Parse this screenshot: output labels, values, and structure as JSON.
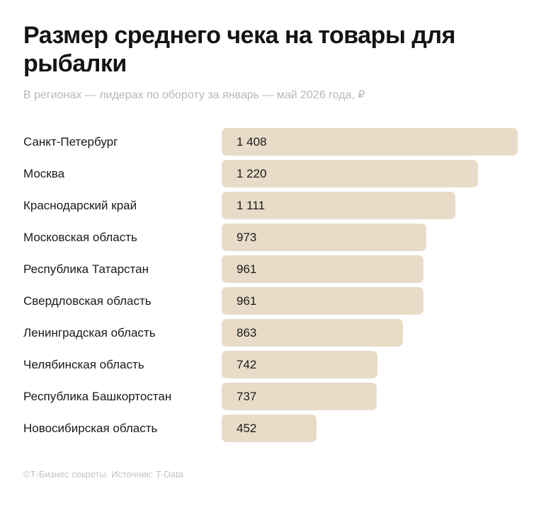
{
  "title": "Размер среднего чека на товары для рыбалки",
  "subtitle": "В регионах — лидерах по обороту за январь — май 2026 года, ₽",
  "footer": "©Т-Бизнес секреты. Источник: T-Data",
  "colors": {
    "bar": "#e8dcc8",
    "text": "#1a1a1a",
    "subtitle": "#b8b8b8",
    "footer": "#c4c4c4"
  },
  "chart_data": {
    "type": "bar",
    "orientation": "horizontal",
    "title": "Размер среднего чека на товары для рыбалки",
    "subtitle": "В регионах — лидерах по обороту за январь — май 2026 года, ₽",
    "categories": [
      "Санкт-Петербург",
      "Москва",
      "Краснодарский край",
      "Московская область",
      "Республика Татарстан",
      "Свердловская область",
      "Ленинградская область",
      "Челябинская область",
      "Республика Башкортостан",
      "Новосибирская область"
    ],
    "values": [
      1408,
      1220,
      1111,
      973,
      961,
      961,
      863,
      742,
      737,
      452
    ],
    "value_labels": [
      "1 408",
      "1 220",
      "1 111",
      "973",
      "961",
      "961",
      "863",
      "742",
      "737",
      "452"
    ],
    "xlim": [
      0,
      1408
    ],
    "grid": false
  }
}
